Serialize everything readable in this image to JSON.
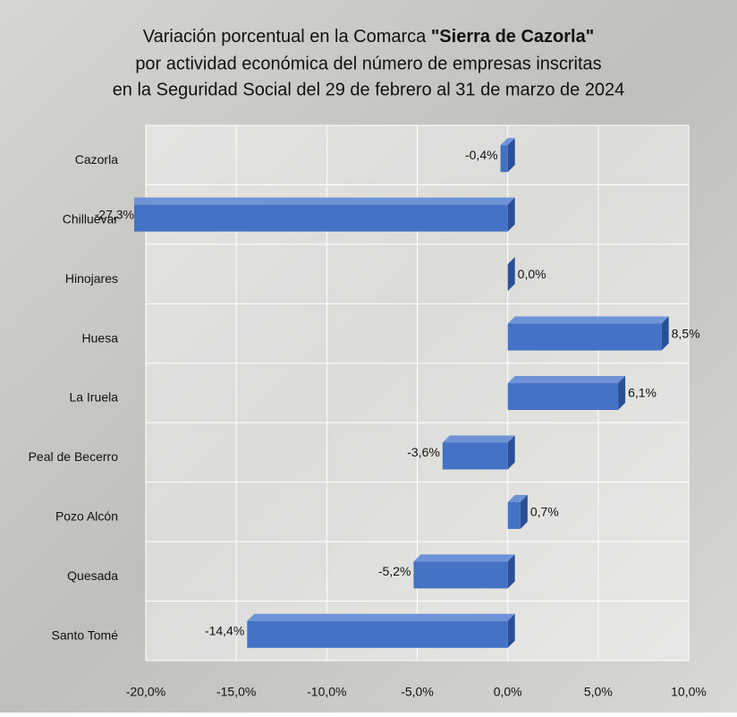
{
  "chart_data": {
    "type": "bar",
    "orientation": "horizontal",
    "title": [
      "Variación porcentual en la Comarca",
      "\"Sierra de Cazorla\"",
      "por actividad económica del número de empresas inscritas",
      "en la Seguridad Social del 29 de febrero al 31 de marzo de 2024"
    ],
    "categories": [
      "Cazorla",
      "Chilluévar",
      "Hinojares",
      "Huesa",
      "La Iruela",
      "Peal de Becerro",
      "Pozo Alcón",
      "Quesada",
      "Santo Tomé"
    ],
    "values": [
      -0.4,
      -27.3,
      0.0,
      8.5,
      6.1,
      -3.6,
      0.7,
      -5.2,
      -14.4
    ],
    "value_labels": [
      "-0,4%",
      "-27,3%",
      "0,0%",
      "8,5%",
      "6,1%",
      "-3,6%",
      "0,7%",
      "-5,2%",
      "-14,4%"
    ],
    "color": "#4472c4",
    "xlim": [
      -20,
      10
    ],
    "xticks": [
      {
        "value": -20,
        "label": "-20,0%"
      },
      {
        "value": -15,
        "label": "-15,0%"
      },
      {
        "value": -10,
        "label": "-10,0%"
      },
      {
        "value": -5,
        "label": "-5,0%"
      },
      {
        "value": 0,
        "label": "0,0%"
      },
      {
        "value": 5,
        "label": "5,0%"
      },
      {
        "value": 10,
        "label": "10,0%"
      }
    ],
    "grid": true
  }
}
